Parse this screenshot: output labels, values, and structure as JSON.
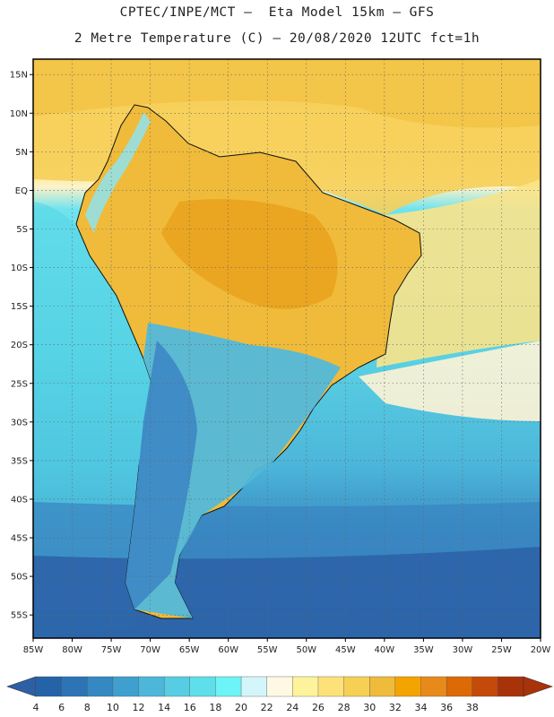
{
  "header": {
    "line1": "CPTEC/INPE/MCT –  Eta Model 15km – GFS",
    "line2": "2 Metre Temperature (C) – 20/08/2020 12UTC fct=1h"
  },
  "map": {
    "lon_range": [
      -85,
      -20
    ],
    "lat_range": [
      -58,
      17
    ],
    "lat_ticks": [
      {
        "value": 15,
        "label": "15N"
      },
      {
        "value": 10,
        "label": "10N"
      },
      {
        "value": 5,
        "label": "5N"
      },
      {
        "value": 0,
        "label": "EQ"
      },
      {
        "value": -5,
        "label": "5S"
      },
      {
        "value": -10,
        "label": "10S"
      },
      {
        "value": -15,
        "label": "15S"
      },
      {
        "value": -20,
        "label": "20S"
      },
      {
        "value": -25,
        "label": "25S"
      },
      {
        "value": -30,
        "label": "30S"
      },
      {
        "value": -35,
        "label": "35S"
      },
      {
        "value": -40,
        "label": "40S"
      },
      {
        "value": -45,
        "label": "45S"
      },
      {
        "value": -50,
        "label": "50S"
      },
      {
        "value": -55,
        "label": "55S"
      }
    ],
    "lon_ticks": [
      {
        "value": -85,
        "label": "85W"
      },
      {
        "value": -80,
        "label": "80W"
      },
      {
        "value": -75,
        "label": "75W"
      },
      {
        "value": -70,
        "label": "70W"
      },
      {
        "value": -65,
        "label": "65W"
      },
      {
        "value": -60,
        "label": "60W"
      },
      {
        "value": -55,
        "label": "55W"
      },
      {
        "value": -50,
        "label": "50W"
      },
      {
        "value": -45,
        "label": "45W"
      },
      {
        "value": -40,
        "label": "40W"
      },
      {
        "value": -35,
        "label": "35W"
      },
      {
        "value": -30,
        "label": "30W"
      },
      {
        "value": -25,
        "label": "25W"
      },
      {
        "value": -20,
        "label": "20W"
      }
    ]
  },
  "colorbar": {
    "labels": [
      "4",
      "6",
      "8",
      "10",
      "12",
      "14",
      "16",
      "18",
      "20",
      "22",
      "24",
      "26",
      "28",
      "30",
      "32",
      "34",
      "36",
      "38"
    ],
    "colors": [
      "#2463a8",
      "#2c74b5",
      "#3588c2",
      "#3fa0cf",
      "#4db7da",
      "#56cde3",
      "#5fdfea",
      "#6cf4f6",
      "#d4f6fb",
      "#fff9e4",
      "#fef39d",
      "#fde27a",
      "#f6d055",
      "#efbb3b",
      "#f3a400",
      "#e88a1a",
      "#dc6a05",
      "#c44a0a",
      "#a8320a"
    ],
    "low_color": "#2c5fa5",
    "high_color": "#a8320a"
  }
}
